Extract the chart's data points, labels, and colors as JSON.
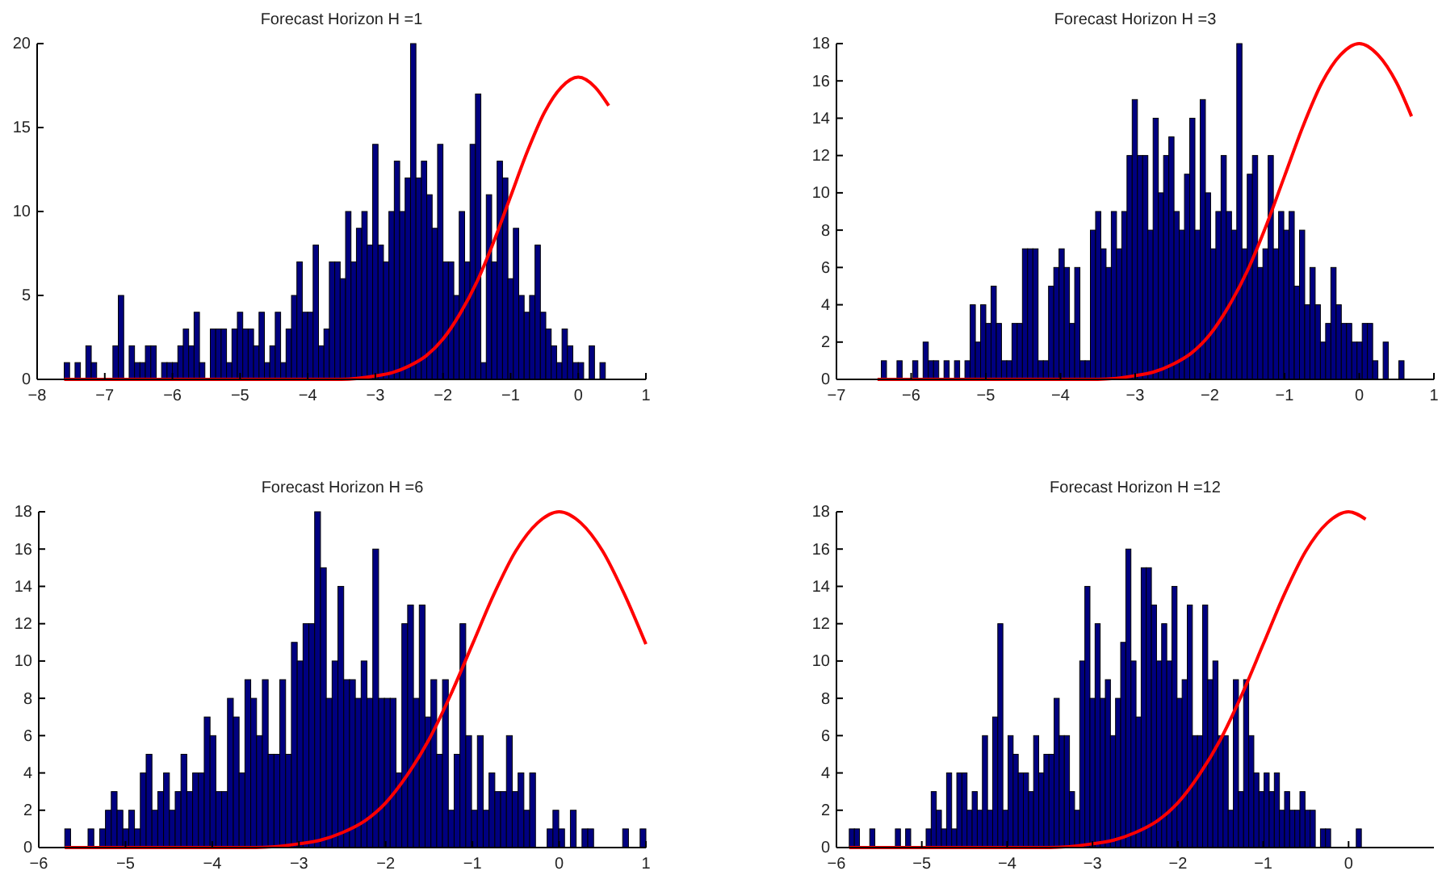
{
  "chart_data": [
    {
      "type": "histogram",
      "title": "Forecast Horizon H =1",
      "xlim": [
        -8,
        1
      ],
      "xticks": [
        -8,
        -7,
        -6,
        -5,
        -4,
        -3,
        -2,
        -1,
        0,
        1
      ],
      "ylim": [
        0,
        20
      ],
      "yticks": [
        0,
        5,
        10,
        15,
        20
      ],
      "series": [
        {
          "type": "histogram",
          "color": "#000080",
          "bins": [
            -7.6,
            -7.52,
            -7.44,
            -7.36,
            -7.28,
            -7.2,
            -7.12,
            -7.04,
            -6.96,
            -6.88,
            -6.8,
            -6.72,
            -6.64,
            -6.56,
            -6.48,
            -6.4,
            -6.32,
            -6.24,
            -6.16,
            -6.08,
            -6,
            -5.92,
            -5.84,
            -5.76,
            -5.68,
            -5.6,
            -5.52,
            -5.44,
            -5.36,
            -5.28,
            -5.2,
            -5.12,
            -5.04,
            -4.96,
            -4.88,
            -4.8,
            -4.72,
            -4.64,
            -4.56,
            -4.48,
            -4.4,
            -4.32,
            -4.24,
            -4.16,
            -4.08,
            -4,
            -3.92,
            -3.84,
            -3.76,
            -3.68,
            -3.6,
            -3.52,
            -3.44,
            -3.36,
            -3.28,
            -3.2,
            -3.12,
            -3.04,
            -2.96,
            -2.88,
            -2.8,
            -2.72,
            -2.64,
            -2.56,
            -2.48,
            -2.4,
            -2.32,
            -2.24,
            -2.16,
            -2.08,
            -2,
            -1.92,
            -1.84,
            -1.76,
            -1.68,
            -1.6,
            -1.52,
            -1.44,
            -1.36,
            -1.28,
            -1.2,
            -1.12,
            -1.04,
            -0.96,
            -0.88,
            -0.8,
            -0.72,
            -0.64,
            -0.56,
            -0.48,
            -0.4,
            -0.32,
            -0.24,
            -0.16,
            -0.08,
            0,
            0.08,
            0.16,
            0.24,
            0.32,
            0.4
          ],
          "values": [
            1,
            0,
            1,
            0,
            2,
            1,
            0,
            0,
            0,
            2,
            5,
            0,
            2,
            1,
            1,
            2,
            2,
            0,
            1,
            1,
            1,
            2,
            3,
            2,
            4,
            1,
            0,
            3,
            3,
            3,
            1,
            3,
            4,
            3,
            3,
            2,
            4,
            1,
            2,
            4,
            1,
            3,
            5,
            7,
            4,
            4,
            8,
            2,
            3,
            7,
            7,
            6,
            10,
            7,
            9,
            10,
            8,
            14,
            8,
            7,
            10,
            13,
            10,
            12,
            20,
            12,
            13,
            11,
            9,
            14,
            7,
            7,
            5,
            10,
            7,
            14,
            17,
            1,
            11,
            7,
            13,
            12,
            6,
            9,
            5,
            4,
            5,
            8,
            4,
            3,
            2,
            1,
            3,
            2,
            1,
            1,
            0,
            2,
            0,
            1
          ]
        },
        {
          "type": "line",
          "color": "#ff0000",
          "x": [
            -7.6,
            -4,
            -3.5,
            -3,
            -2.75,
            -2.5,
            -2.25,
            -2,
            -1.75,
            -1.5,
            -1.25,
            -1,
            -0.75,
            -0.5,
            -0.25,
            0,
            0.25,
            0.45
          ],
          "values": [
            0,
            0,
            0,
            0.2,
            0.4,
            0.8,
            1.4,
            2.4,
            3.9,
            5.8,
            8.2,
            10.9,
            13.6,
            15.9,
            17.4,
            18,
            17.4,
            16.3
          ]
        }
      ]
    },
    {
      "type": "histogram",
      "title": "Forecast Horizon H =3",
      "xlim": [
        -7,
        1
      ],
      "xticks": [
        -7,
        -6,
        -5,
        -4,
        -3,
        -2,
        -1,
        0,
        1
      ],
      "ylim": [
        0,
        18
      ],
      "yticks": [
        0,
        2,
        4,
        6,
        8,
        10,
        12,
        14,
        16,
        18
      ],
      "series": [
        {
          "type": "histogram",
          "color": "#000080",
          "bins": [
            -6.4,
            -6.33,
            -6.26,
            -6.19,
            -6.12,
            -6.05,
            -5.98,
            -5.91,
            -5.84,
            -5.77,
            -5.7,
            -5.63,
            -5.56,
            -5.49,
            -5.42,
            -5.35,
            -5.28,
            -5.21,
            -5.14,
            -5.07,
            -5,
            -4.93,
            -4.86,
            -4.79,
            -4.72,
            -4.65,
            -4.58,
            -4.51,
            -4.44,
            -4.37,
            -4.3,
            -4.23,
            -4.16,
            -4.09,
            -4.02,
            -3.95,
            -3.88,
            -3.81,
            -3.74,
            -3.67,
            -3.6,
            -3.53,
            -3.46,
            -3.39,
            -3.32,
            -3.25,
            -3.18,
            -3.11,
            -3.04,
            -2.97,
            -2.9,
            -2.83,
            -2.76,
            -2.69,
            -2.62,
            -2.55,
            -2.48,
            -2.41,
            -2.34,
            -2.27,
            -2.2,
            -2.13,
            -2.06,
            -1.99,
            -1.92,
            -1.85,
            -1.78,
            -1.71,
            -1.64,
            -1.57,
            -1.5,
            -1.43,
            -1.36,
            -1.29,
            -1.22,
            -1.15,
            -1.08,
            -1.01,
            -0.94,
            -0.87,
            -0.8,
            -0.73,
            -0.66,
            -0.59,
            -0.52,
            -0.45,
            -0.38,
            -0.31,
            -0.24,
            -0.17,
            -0.1,
            -0.03,
            0.04,
            0.11,
            0.18,
            0.25,
            0.32,
            0.39,
            0.46,
            0.53,
            0.6
          ],
          "values": [
            1,
            0,
            0,
            1,
            0,
            0,
            1,
            0,
            2,
            1,
            1,
            0,
            1,
            0,
            1,
            0,
            1,
            4,
            2,
            4,
            3,
            5,
            3,
            1,
            1,
            3,
            3,
            7,
            7,
            7,
            1,
            1,
            5,
            6,
            7,
            6,
            3,
            6,
            1,
            1,
            8,
            9,
            7,
            6,
            9,
            7,
            9,
            12,
            15,
            12,
            12,
            8,
            14,
            10,
            12,
            13,
            9,
            8,
            11,
            14,
            8,
            15,
            10,
            7,
            9,
            12,
            9,
            8,
            18,
            7,
            11,
            12,
            6,
            7,
            12,
            7,
            9,
            8,
            9,
            5,
            8,
            4,
            6,
            4,
            2,
            3,
            6,
            4,
            3,
            3,
            2,
            2,
            3,
            3,
            1,
            0,
            2,
            0,
            0,
            1
          ]
        },
        {
          "type": "line",
          "color": "#ff0000",
          "x": [
            -6.45,
            -4,
            -3.5,
            -3,
            -2.75,
            -2.5,
            -2.25,
            -2,
            -1.75,
            -1.5,
            -1.25,
            -1,
            -0.75,
            -0.5,
            -0.25,
            0,
            0.25,
            0.5,
            0.7
          ],
          "values": [
            0,
            0,
            0,
            0.2,
            0.4,
            0.8,
            1.4,
            2.4,
            3.9,
            5.8,
            8.2,
            10.9,
            13.6,
            15.9,
            17.4,
            18,
            17.4,
            15.9,
            14.1
          ]
        }
      ]
    },
    {
      "type": "histogram",
      "title": "Forecast Horizon H =6",
      "xlim": [
        -6,
        1
      ],
      "xticks": [
        -6,
        -5,
        -4,
        -3,
        -2,
        -1,
        0,
        1
      ],
      "ylim": [
        0,
        18
      ],
      "yticks": [
        0,
        2,
        4,
        6,
        8,
        10,
        12,
        14,
        16,
        18
      ],
      "series": [
        {
          "type": "histogram",
          "color": "#000080",
          "bins": [
            -5.7,
            -5.633,
            -5.566,
            -5.499,
            -5.432,
            -5.365,
            -5.298,
            -5.231,
            -5.164,
            -5.097,
            -5.03,
            -4.963,
            -4.896,
            -4.829,
            -4.762,
            -4.695,
            -4.628,
            -4.561,
            -4.494,
            -4.427,
            -4.36,
            -4.293,
            -4.226,
            -4.159,
            -4.092,
            -4.025,
            -3.958,
            -3.891,
            -3.824,
            -3.757,
            -3.69,
            -3.623,
            -3.556,
            -3.489,
            -3.422,
            -3.355,
            -3.288,
            -3.221,
            -3.154,
            -3.087,
            -3.02,
            -2.953,
            -2.886,
            -2.819,
            -2.752,
            -2.685,
            -2.618,
            -2.551,
            -2.484,
            -2.417,
            -2.35,
            -2.283,
            -2.216,
            -2.149,
            -2.082,
            -2.015,
            -1.948,
            -1.881,
            -1.814,
            -1.747,
            -1.68,
            -1.613,
            -1.546,
            -1.479,
            -1.412,
            -1.345,
            -1.278,
            -1.211,
            -1.144,
            -1.077,
            -1.01,
            -0.943,
            -0.876,
            -0.809,
            -0.742,
            -0.675,
            -0.608,
            -0.541,
            -0.474,
            -0.407,
            -0.34,
            -0.273,
            -0.206,
            -0.139,
            -0.072,
            -0.005,
            0.062,
            0.129,
            0.196,
            0.263,
            0.33,
            0.397,
            0.464,
            0.531,
            0.598,
            0.665,
            0.732,
            0.799,
            0.866,
            0.933,
            1
          ],
          "values": [
            1,
            0,
            0,
            0,
            1,
            0,
            1,
            2,
            3,
            2,
            1,
            2,
            1,
            4,
            5,
            2,
            3,
            4,
            2,
            3,
            5,
            3,
            4,
            4,
            7,
            6,
            3,
            3,
            8,
            7,
            4,
            9,
            8,
            6,
            9,
            5,
            5,
            9,
            5,
            11,
            10,
            12,
            12,
            18,
            15,
            8,
            10,
            14,
            9,
            9,
            8,
            10,
            8,
            16,
            8,
            8,
            8,
            4,
            12,
            13,
            8,
            13,
            7,
            9,
            5,
            9,
            2,
            5,
            12,
            6,
            2,
            6,
            2,
            4,
            3,
            3,
            6,
            3,
            4,
            2,
            4,
            0,
            0,
            1,
            2,
            1,
            0,
            2,
            0,
            1,
            1,
            0,
            0,
            0,
            0,
            0,
            1,
            0,
            0,
            1
          ]
        },
        {
          "type": "line",
          "color": "#ff0000",
          "x": [
            -5.7,
            -4,
            -3.5,
            -3,
            -2.75,
            -2.5,
            -2.25,
            -2,
            -1.75,
            -1.5,
            -1.25,
            -1,
            -0.75,
            -0.5,
            -0.25,
            0,
            0.25,
            0.5,
            0.75,
            1
          ],
          "values": [
            0,
            0,
            0,
            0.2,
            0.4,
            0.8,
            1.4,
            2.4,
            3.9,
            5.8,
            8.2,
            10.9,
            13.6,
            15.9,
            17.4,
            18,
            17.4,
            15.9,
            13.6,
            10.9
          ]
        }
      ]
    },
    {
      "type": "histogram",
      "title": "Forecast Horizon H =12",
      "xlim": [
        -6,
        1
      ],
      "xticks": [
        -6,
        -5,
        -4,
        -3,
        -2,
        -1,
        0
      ],
      "ylim": [
        0,
        18
      ],
      "yticks": [
        0,
        2,
        4,
        6,
        8,
        10,
        12,
        14,
        16,
        18
      ],
      "series": [
        {
          "type": "histogram",
          "color": "#000080",
          "bins": [
            -5.85,
            -5.79,
            -5.73,
            -5.67,
            -5.61,
            -5.55,
            -5.49,
            -5.43,
            -5.37,
            -5.31,
            -5.25,
            -5.19,
            -5.13,
            -5.07,
            -5.01,
            -4.95,
            -4.89,
            -4.83,
            -4.77,
            -4.71,
            -4.65,
            -4.59,
            -4.53,
            -4.47,
            -4.41,
            -4.35,
            -4.29,
            -4.23,
            -4.17,
            -4.11,
            -4.05,
            -3.99,
            -3.93,
            -3.87,
            -3.81,
            -3.75,
            -3.69,
            -3.63,
            -3.57,
            -3.51,
            -3.45,
            -3.39,
            -3.33,
            -3.27,
            -3.21,
            -3.15,
            -3.09,
            -3.03,
            -2.97,
            -2.91,
            -2.85,
            -2.79,
            -2.73,
            -2.67,
            -2.61,
            -2.55,
            -2.49,
            -2.43,
            -2.37,
            -2.31,
            -2.25,
            -2.19,
            -2.13,
            -2.07,
            -2.01,
            -1.95,
            -1.89,
            -1.83,
            -1.77,
            -1.71,
            -1.65,
            -1.59,
            -1.53,
            -1.47,
            -1.41,
            -1.35,
            -1.29,
            -1.23,
            -1.17,
            -1.11,
            -1.05,
            -0.99,
            -0.93,
            -0.87,
            -0.81,
            -0.75,
            -0.69,
            -0.63,
            -0.57,
            -0.51,
            -0.45,
            -0.39,
            -0.33,
            -0.27,
            -0.21,
            -0.15,
            -0.09,
            -0.03,
            0.03,
            0.09,
            0.15
          ],
          "values": [
            1,
            1,
            0,
            0,
            1,
            0,
            0,
            0,
            0,
            1,
            0,
            1,
            0,
            0,
            0,
            1,
            3,
            2,
            1,
            4,
            1,
            4,
            4,
            2,
            3,
            2,
            6,
            2,
            7,
            12,
            2,
            6,
            5,
            4,
            4,
            3,
            6,
            4,
            5,
            5,
            8,
            6,
            6,
            3,
            2,
            10,
            14,
            8,
            12,
            8,
            9,
            6,
            8,
            11,
            16,
            10,
            7,
            15,
            15,
            13,
            10,
            12,
            10,
            14,
            8,
            9,
            13,
            6,
            6,
            13,
            9,
            10,
            6,
            6,
            2,
            9,
            3,
            9,
            6,
            4,
            3,
            4,
            3,
            4,
            2,
            3,
            2,
            2,
            3,
            2,
            2,
            0,
            1,
            1,
            0,
            0,
            0,
            0,
            0,
            1
          ]
        },
        {
          "type": "line",
          "color": "#ff0000",
          "x": [
            -5.85,
            -4,
            -3.5,
            -3,
            -2.75,
            -2.5,
            -2.25,
            -2,
            -1.75,
            -1.5,
            -1.25,
            -1,
            -0.75,
            -0.5,
            -0.25,
            0,
            0.2
          ],
          "values": [
            0,
            0,
            0,
            0.2,
            0.4,
            0.8,
            1.4,
            2.4,
            3.9,
            5.8,
            8.2,
            10.9,
            13.6,
            15.9,
            17.4,
            18,
            17.6
          ]
        }
      ]
    }
  ]
}
